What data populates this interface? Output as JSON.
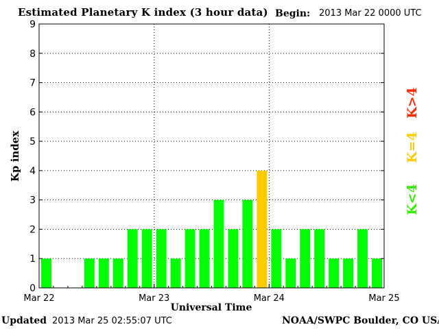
{
  "header": {
    "title": "Estimated Planetary K index (3 hour data)",
    "begin_label": "Begin:",
    "begin_value": "2013 Mar 22 0000 UTC"
  },
  "footer": {
    "updated_label": "Updated",
    "updated_value": "2013 Mar 25 02:55:07 UTC",
    "source": "NOAA/SWPC Boulder, CO USA"
  },
  "legend": {
    "high": "K>4",
    "equal": "K=4",
    "low": "K<4"
  },
  "colors": {
    "low": "#00ff00",
    "equal": "#ffcc00",
    "high": "#ff2a00"
  },
  "chart_data": {
    "type": "bar",
    "title": "Estimated Planetary K index (3 hour data)",
    "xlabel": "Universal Time",
    "ylabel": "Kp index",
    "ylim": [
      0,
      9
    ],
    "yticks": [
      "0",
      "1",
      "2",
      "3",
      "4",
      "5",
      "6",
      "7",
      "8",
      "9"
    ],
    "xticks": [
      "Mar 22",
      "Mar 23",
      "Mar 24",
      "Mar 25"
    ],
    "grid": true,
    "interval_hours": 3,
    "categories": [
      "2013-03-22 00:00",
      "2013-03-22 03:00",
      "2013-03-22 06:00",
      "2013-03-22 09:00",
      "2013-03-22 12:00",
      "2013-03-22 15:00",
      "2013-03-22 18:00",
      "2013-03-22 21:00",
      "2013-03-23 00:00",
      "2013-03-23 03:00",
      "2013-03-23 06:00",
      "2013-03-23 09:00",
      "2013-03-23 12:00",
      "2013-03-23 15:00",
      "2013-03-23 18:00",
      "2013-03-23 21:00",
      "2013-03-24 00:00",
      "2013-03-24 03:00",
      "2013-03-24 06:00",
      "2013-03-24 09:00",
      "2013-03-24 12:00",
      "2013-03-24 15:00",
      "2013-03-24 18:00",
      "2013-03-24 21:00"
    ],
    "values": [
      1,
      null,
      null,
      1,
      1,
      1,
      2,
      2,
      2,
      1,
      2,
      2,
      3,
      2,
      3,
      4,
      2,
      1,
      2,
      2,
      1,
      1,
      2,
      1
    ]
  }
}
